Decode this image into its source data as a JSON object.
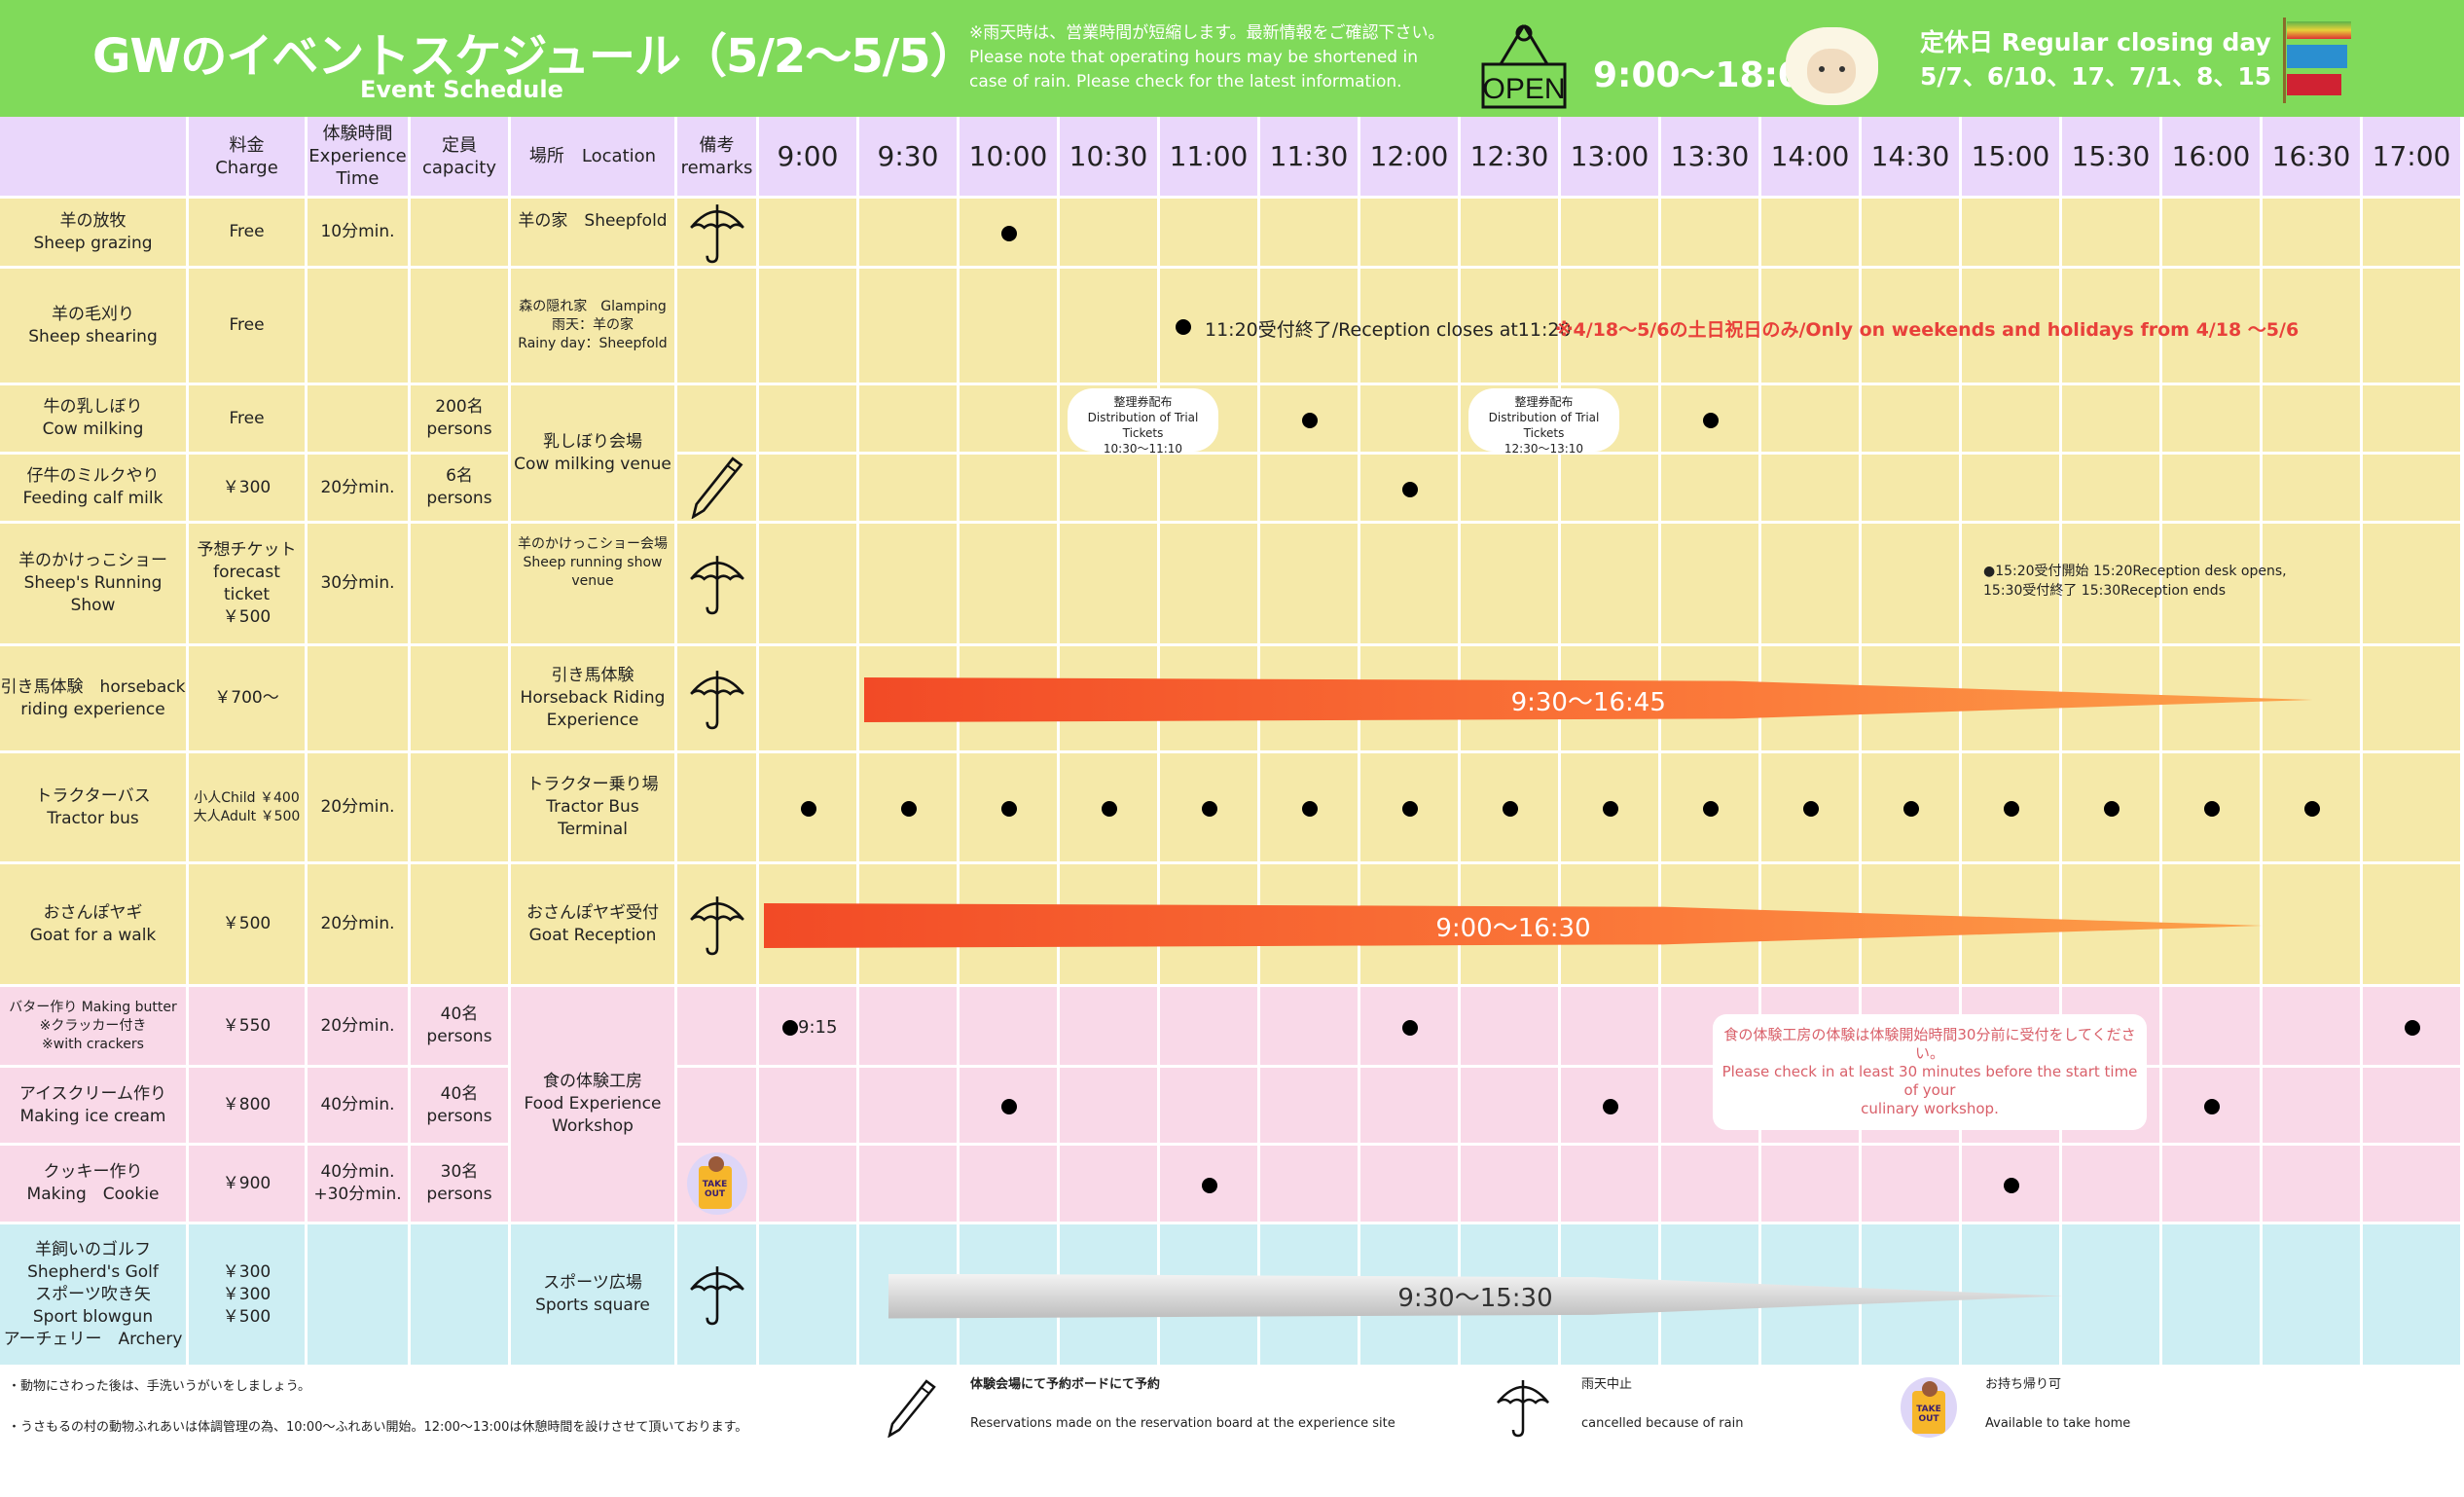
{
  "header": {
    "title": "GWのイベントスケジュール（5/2～5/5）",
    "subtitle": "Event Schedule",
    "rain_note": "※雨天時は、営業時間が短縮します。最新情報をご確認下さい。\nPlease note that operating hours may be shortened in\ncase of rain. Please check for the latest information.",
    "open_sign": "OPEN",
    "hours": "9:00～18:00",
    "closing_title": "定休日 Regular closing day",
    "closing_dates": "5/7、6/10、17、7/1、8、15"
  },
  "columns": [
    "",
    "料金\nCharge",
    "体験時間\nExperience\nTime",
    "定員\ncapacity",
    "場所　Location",
    "備考\nremarks"
  ],
  "times": [
    "9:00",
    "9:30",
    "10:00",
    "10:30",
    "11:00",
    "11:30",
    "12:00",
    "12:30",
    "13:00",
    "13:30",
    "14:00",
    "14:30",
    "15:00",
    "15:30",
    "16:00",
    "16:30",
    "17:00"
  ],
  "rows": [
    {
      "name": "羊の放牧\nSheep grazing",
      "charge": "Free",
      "time": "10分min.",
      "capacity": "",
      "location": "羊の家　Sheepfold",
      "loc_top": true,
      "remark": "umbrella",
      "bg": "yellow",
      "dots": [
        "10:00"
      ]
    },
    {
      "name": "羊の毛刈り\nSheep shearing",
      "charge": "Free",
      "time": "",
      "capacity": "",
      "location": "森の隠れ家　Glamping\n雨天：羊の家\nRainy day：Sheepfold",
      "loc_small": true,
      "remark": "",
      "bg": "yellow",
      "dots": [],
      "note": {
        "at": "11:00",
        "text": "11:20受付終了/Reception closes at11:20",
        "red": "※4/18～5/6の土日祝日のみ/Only on weekends and holidays from 4/18 ～5/6"
      }
    },
    {
      "name": "牛の乳しぼり\nCow milking",
      "charge": "Free",
      "time": "",
      "capacity": "200名\npersons",
      "location": "乳しぼり会場\nCow milking venue",
      "loc_span": 2,
      "remark": "",
      "bg": "yellow",
      "dots": [
        "11:30",
        "13:30"
      ],
      "bubbles": [
        {
          "at": "10:30",
          "text": "整理券配布\nDistribution of Trial Tickets\n10:30～11:10"
        },
        {
          "at": "12:30",
          "text": "整理券配布\nDistribution of Trial Tickets\n12:30～13:10"
        }
      ]
    },
    {
      "name": "仔牛のミルクやり\nFeeding calf milk",
      "charge": "￥300",
      "time": "20分min.",
      "capacity": "6名\npersons",
      "location": null,
      "remark": "pencil",
      "bg": "yellow",
      "dots": [
        "12:00"
      ]
    },
    {
      "name": "羊のかけっこショー\nSheep's Running Show",
      "charge": "予想チケット\nforecast ticket\n￥500",
      "time": "30分min.",
      "capacity": "",
      "location": "羊のかけっこショー会場\nSheep running show\nvenue",
      "loc_small": true,
      "loc_top": true,
      "remark": "umbrella",
      "bg": "yellow",
      "dots": [],
      "note": {
        "at": "15:00",
        "text": "●15:20受付開始 15:20Reception desk opens,\n15:30受付終了 15:30Reception ends",
        "small": true
      }
    },
    {
      "name": "引き馬体験　horseback\nriding experience",
      "charge": "￥700～",
      "time": "",
      "capacity": "",
      "location": "引き馬体験\nHorseback Riding\nExperience",
      "remark": "umbrella",
      "bg": "yellow",
      "dots": [],
      "bar": {
        "from": "9:30",
        "to": "16:45",
        "label": "9:30～16:45",
        "color": "red"
      }
    },
    {
      "name": "トラクターバス\nTractor bus",
      "charge": "小人Child ￥400\n大人Adult ￥500",
      "charge_small": true,
      "time": "20分min.",
      "capacity": "",
      "location": "トラクター乗り場\nTractor Bus Terminal",
      "remark": "",
      "bg": "yellow",
      "dots": [
        "9:00",
        "9:30",
        "10:00",
        "10:30",
        "11:00",
        "11:30",
        "12:00",
        "12:30",
        "13:00",
        "13:30",
        "14:00",
        "14:30",
        "15:00",
        "15:30",
        "16:00",
        "16:30"
      ]
    },
    {
      "name": "おさんぽヤギ\nGoat for a walk",
      "charge": "￥500",
      "time": "20分min.",
      "capacity": "",
      "location": "おさんぽヤギ受付\nGoat Reception",
      "remark": "umbrella",
      "bg": "yellow",
      "dots": [],
      "bar": {
        "from": "9:00",
        "to": "16:30",
        "label": "9:00～16:30",
        "color": "red"
      }
    },
    {
      "name": "バター作り Making butter\n※クラッカー付き\n※with crackers",
      "name_small": true,
      "charge": "￥550",
      "time": "20分min.",
      "capacity": "40名\npersons",
      "location": "食の体験工房\nFood Experience\nWorkshop",
      "loc_span": 3,
      "remark": "",
      "bg": "pink",
      "dots": [
        "12:00",
        "17:00"
      ],
      "labeled_dot": {
        "at": "9:00",
        "text": "9:15"
      }
    },
    {
      "name": "アイスクリーム作り\nMaking ice cream",
      "charge": "￥800",
      "time": "40分min.",
      "capacity": "40名\npersons",
      "location": null,
      "remark": "",
      "bg": "pink",
      "dots": [
        "10:00",
        "13:00",
        "16:00"
      ]
    },
    {
      "name": "クッキー作り\nMaking　Cookie",
      "charge": "￥900",
      "time": "40分min.\n+30分min.",
      "capacity": "30名\npersons",
      "location": null,
      "remark": "takeout",
      "bg": "pink",
      "dots": [
        "11:00",
        "15:00"
      ]
    },
    {
      "name": "羊飼いのゴルフ\nShepherd's Golf\nスポーツ吹き矢\nSport blowgun\nアーチェリー　Archery",
      "charge": "￥300\n￥300\n￥500",
      "time": "",
      "capacity": "",
      "location": "スポーツ広場\nSports square",
      "remark": "umbrella",
      "bg": "blue",
      "dots": [],
      "bar": {
        "from": "9:30",
        "to": "15:30",
        "label": "9:30～15:30",
        "color": "gray"
      }
    }
  ],
  "workshop_note": "食の体験工房の体験は体験開始時間30分前に受付をしてください。\nPlease check in at least 30 minutes before the start time of your\nculinary workshop.",
  "footer": {
    "note1": "・動物にさわった後は、手洗いうがいをしましょう。",
    "note2": "・うさもるの村の動物ふれあいは体調管理の為、10:00～ふれあい開始。12:00～13:00は休憩時間を設けさせて頂いております。",
    "pencil_jp": "体験会場にて予約ボードにて予約",
    "pencil_en": "Reservations made on the reservation board at the experience site",
    "umbrella_jp": "雨天中止",
    "umbrella_en": "cancelled because of rain",
    "takeout_jp": "お持ち帰り可",
    "takeout_en": "Available to take home",
    "takeout_badge": "TAKE OUT"
  }
}
